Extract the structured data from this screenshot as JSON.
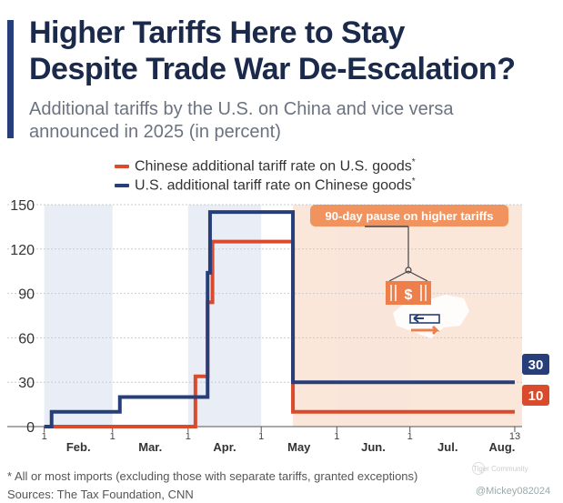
{
  "header": {
    "title_line1": "Higher Tariffs Here to Stay",
    "title_line2": "Despite Trade War De-Escalation?",
    "subtitle_line1": "Additional tariffs by the U.S. on China and vice versa",
    "subtitle_line2": "announced in 2025 (in percent)"
  },
  "legend": {
    "items": [
      {
        "label": "Chinese additional tariff rate on U.S. goods",
        "marker": "*",
        "color": "#d94b2b"
      },
      {
        "label": "U.S. additional tariff rate on Chinese goods",
        "marker": "*",
        "color": "#263e7a"
      }
    ]
  },
  "annotation": {
    "pause_label": "90-day pause on higher tariffs",
    "icon": "shipping-container-dollar-icon"
  },
  "end_labels": {
    "us": "30",
    "china": "10"
  },
  "footer": {
    "footnote": "* All or most imports (excluding those with separate tariffs, granted exceptions)",
    "sources": "Sources: The Tax Foundation, CNN",
    "watermark": "Tiger Community",
    "user_tag": "@Mickey082024"
  },
  "colors": {
    "china": "#d94b2b",
    "us": "#263e7a",
    "pause_shade": "#fbe3d6",
    "pause_badge": "#f0935f",
    "month_shade": "#e9edf6"
  },
  "chart_data": {
    "type": "line",
    "xlabel": "",
    "ylabel": "",
    "x_range": [
      "2025-01-31",
      "2025-08-16"
    ],
    "ylim": [
      0,
      150
    ],
    "y_ticks": [
      0,
      30,
      60,
      90,
      120,
      150
    ],
    "x_ticks": [
      {
        "date": "2025-02-01",
        "label": "1"
      },
      {
        "date": "2025-03-01",
        "label": "1"
      },
      {
        "date": "2025-04-01",
        "label": "1"
      },
      {
        "date": "2025-05-01",
        "label": "1"
      },
      {
        "date": "2025-06-01",
        "label": "1"
      },
      {
        "date": "2025-07-01",
        "label": "1"
      },
      {
        "date": "2025-08-13",
        "label": "13"
      }
    ],
    "months": [
      "Feb.",
      "Mar.",
      "Apr.",
      "May",
      "Jun.",
      "Jul.",
      "Aug."
    ],
    "pause_start": "2025-05-14",
    "series": [
      {
        "key": "china",
        "steps": [
          {
            "date": "2025-02-01",
            "value": 0
          },
          {
            "date": "2025-04-04",
            "value": 34
          },
          {
            "date": "2025-04-09",
            "value": 84
          },
          {
            "date": "2025-04-11",
            "value": 125
          },
          {
            "date": "2025-05-14",
            "value": 10
          },
          {
            "date": "2025-08-13",
            "value": 10
          }
        ]
      },
      {
        "key": "us",
        "steps": [
          {
            "date": "2025-02-01",
            "value": 0
          },
          {
            "date": "2025-02-04",
            "value": 10
          },
          {
            "date": "2025-03-04",
            "value": 20
          },
          {
            "date": "2025-04-05",
            "value": 20
          },
          {
            "date": "2025-04-09",
            "value": 104
          },
          {
            "date": "2025-04-10",
            "value": 145
          },
          {
            "date": "2025-05-14",
            "value": 30
          },
          {
            "date": "2025-08-13",
            "value": 30
          }
        ]
      }
    ]
  }
}
